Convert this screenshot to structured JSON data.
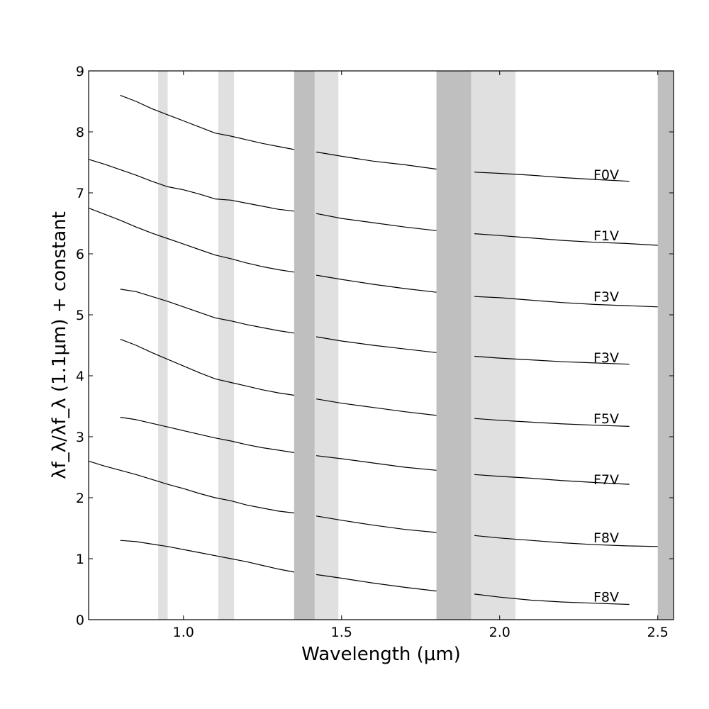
{
  "chart_data": {
    "type": "line",
    "xlabel": "Wavelength (μm)",
    "ylabel": "λf_λ/λf_λ (1.1μm) + constant",
    "xlim": [
      0.7,
      2.55
    ],
    "ylim": [
      0,
      9
    ],
    "x_ticks": [
      1.0,
      1.5,
      2.0,
      2.5
    ],
    "x_tick_labels": [
      "1.0",
      "1.5",
      "2.0",
      "2.5"
    ],
    "y_ticks": [
      0,
      1,
      2,
      3,
      4,
      5,
      6,
      7,
      8,
      9
    ],
    "y_tick_labels": [
      "0",
      "1",
      "2",
      "3",
      "4",
      "5",
      "6",
      "7",
      "8",
      "9"
    ],
    "grid": false,
    "bands": [
      {
        "x0": 0.92,
        "x1": 0.95,
        "color": "#e0e0e0"
      },
      {
        "x0": 1.11,
        "x1": 1.16,
        "color": "#e0e0e0"
      },
      {
        "x0": 1.35,
        "x1": 1.415,
        "color": "#bfbfbf"
      },
      {
        "x0": 1.415,
        "x1": 1.49,
        "color": "#e0e0e0"
      },
      {
        "x0": 1.8,
        "x1": 1.91,
        "color": "#bfbfbf"
      },
      {
        "x0": 1.91,
        "x1": 2.05,
        "color": "#e0e0e0"
      },
      {
        "x0": 2.5,
        "x1": 2.55,
        "color": "#bfbfbf"
      }
    ],
    "series": [
      {
        "name": "F0V",
        "label_y": 7.3,
        "segments": [
          {
            "x": [
              0.8,
              0.85,
              0.9,
              0.95,
              1.0,
              1.05,
              1.1,
              1.15,
              1.2,
              1.25,
              1.3,
              1.35
            ],
            "y": [
              8.6,
              8.5,
              8.38,
              8.28,
              8.18,
              8.08,
              7.98,
              7.93,
              7.87,
              7.81,
              7.76,
              7.71
            ]
          },
          {
            "x": [
              1.42,
              1.5,
              1.6,
              1.7,
              1.8
            ],
            "y": [
              7.67,
              7.6,
              7.52,
              7.46,
              7.39
            ]
          },
          {
            "x": [
              1.92,
              2.0,
              2.1,
              2.2,
              2.3,
              2.41
            ],
            "y": [
              7.34,
              7.32,
              7.29,
              7.25,
              7.22,
              7.19
            ]
          }
        ]
      },
      {
        "name": "F1V",
        "label_y": 6.3,
        "segments": [
          {
            "x": [
              0.7,
              0.75,
              0.8,
              0.85,
              0.9,
              0.95,
              1.0,
              1.05,
              1.1,
              1.15,
              1.2,
              1.25,
              1.3,
              1.35
            ],
            "y": [
              7.55,
              7.47,
              7.38,
              7.29,
              7.19,
              7.1,
              7.05,
              6.98,
              6.9,
              6.88,
              6.83,
              6.78,
              6.73,
              6.7
            ]
          },
          {
            "x": [
              1.42,
              1.5,
              1.6,
              1.7,
              1.8
            ],
            "y": [
              6.66,
              6.58,
              6.51,
              6.44,
              6.38
            ]
          },
          {
            "x": [
              1.92,
              2.0,
              2.1,
              2.2,
              2.3,
              2.4,
              2.5
            ],
            "y": [
              6.33,
              6.3,
              6.26,
              6.22,
              6.19,
              6.17,
              6.14
            ]
          }
        ]
      },
      {
        "name": "F3V",
        "label_y": 5.3,
        "segments": [
          {
            "x": [
              0.7,
              0.75,
              0.8,
              0.85,
              0.9,
              0.95,
              1.0,
              1.05,
              1.1,
              1.15,
              1.2,
              1.25,
              1.3,
              1.35
            ],
            "y": [
              6.75,
              6.65,
              6.55,
              6.44,
              6.34,
              6.25,
              6.16,
              6.07,
              5.98,
              5.92,
              5.85,
              5.79,
              5.74,
              5.7
            ]
          },
          {
            "x": [
              1.42,
              1.5,
              1.6,
              1.7,
              1.8
            ],
            "y": [
              5.65,
              5.58,
              5.5,
              5.43,
              5.37
            ]
          },
          {
            "x": [
              1.92,
              2.0,
              2.1,
              2.2,
              2.3,
              2.4,
              2.5
            ],
            "y": [
              5.3,
              5.28,
              5.24,
              5.2,
              5.17,
              5.15,
              5.13
            ]
          }
        ]
      },
      {
        "name": "F3V",
        "label_y": 4.3,
        "segments": [
          {
            "x": [
              0.8,
              0.85,
              0.9,
              0.95,
              1.0,
              1.05,
              1.1,
              1.15,
              1.2,
              1.25,
              1.3,
              1.35
            ],
            "y": [
              5.42,
              5.38,
              5.3,
              5.22,
              5.13,
              5.04,
              4.95,
              4.9,
              4.84,
              4.79,
              4.74,
              4.7
            ]
          },
          {
            "x": [
              1.42,
              1.5,
              1.6,
              1.7,
              1.8
            ],
            "y": [
              4.64,
              4.57,
              4.5,
              4.44,
              4.38
            ]
          },
          {
            "x": [
              1.92,
              2.0,
              2.1,
              2.2,
              2.3,
              2.41
            ],
            "y": [
              4.32,
              4.29,
              4.26,
              4.23,
              4.21,
              4.19
            ]
          }
        ]
      },
      {
        "name": "F5V",
        "label_y": 3.3,
        "segments": [
          {
            "x": [
              0.8,
              0.85,
              0.9,
              0.95,
              1.0,
              1.05,
              1.1,
              1.15,
              1.2,
              1.25,
              1.3,
              1.35
            ],
            "y": [
              4.6,
              4.5,
              4.38,
              4.27,
              4.16,
              4.05,
              3.95,
              3.89,
              3.83,
              3.77,
              3.72,
              3.68
            ]
          },
          {
            "x": [
              1.42,
              1.5,
              1.6,
              1.7,
              1.8
            ],
            "y": [
              3.62,
              3.55,
              3.48,
              3.41,
              3.35
            ]
          },
          {
            "x": [
              1.92,
              2.0,
              2.1,
              2.2,
              2.3,
              2.41
            ],
            "y": [
              3.3,
              3.27,
              3.24,
              3.21,
              3.19,
              3.17
            ]
          }
        ]
      },
      {
        "name": "F7V",
        "label_y": 2.3,
        "segments": [
          {
            "x": [
              0.8,
              0.85,
              0.9,
              0.95,
              1.0,
              1.05,
              1.1,
              1.15,
              1.2,
              1.25,
              1.3,
              1.35
            ],
            "y": [
              3.32,
              3.28,
              3.22,
              3.16,
              3.1,
              3.04,
              2.98,
              2.93,
              2.87,
              2.82,
              2.78,
              2.74
            ]
          },
          {
            "x": [
              1.42,
              1.5,
              1.6,
              1.7,
              1.8
            ],
            "y": [
              2.69,
              2.64,
              2.57,
              2.5,
              2.45
            ]
          },
          {
            "x": [
              1.92,
              2.0,
              2.1,
              2.2,
              2.3,
              2.41
            ],
            "y": [
              2.38,
              2.35,
              2.32,
              2.28,
              2.25,
              2.22
            ]
          }
        ]
      },
      {
        "name": "F8V",
        "label_y": 1.35,
        "segments": [
          {
            "x": [
              0.7,
              0.75,
              0.8,
              0.85,
              0.9,
              0.95,
              1.0,
              1.05,
              1.1,
              1.15,
              1.2,
              1.25,
              1.3,
              1.35
            ],
            "y": [
              2.6,
              2.52,
              2.45,
              2.38,
              2.3,
              2.22,
              2.15,
              2.07,
              2.0,
              1.95,
              1.88,
              1.83,
              1.78,
              1.75
            ]
          },
          {
            "x": [
              1.42,
              1.5,
              1.6,
              1.7,
              1.8
            ],
            "y": [
              1.7,
              1.63,
              1.55,
              1.48,
              1.43
            ]
          },
          {
            "x": [
              1.92,
              2.0,
              2.1,
              2.2,
              2.3,
              2.4,
              2.5
            ],
            "y": [
              1.38,
              1.34,
              1.3,
              1.26,
              1.23,
              1.21,
              1.2
            ]
          }
        ]
      },
      {
        "name": "F8V",
        "label_y": 0.38,
        "segments": [
          {
            "x": [
              0.8,
              0.85,
              0.9,
              0.95,
              1.0,
              1.05,
              1.1,
              1.15,
              1.2,
              1.25,
              1.3,
              1.35
            ],
            "y": [
              1.3,
              1.28,
              1.24,
              1.2,
              1.15,
              1.1,
              1.05,
              1.0,
              0.95,
              0.89,
              0.83,
              0.78
            ]
          },
          {
            "x": [
              1.42,
              1.5,
              1.6,
              1.7,
              1.8
            ],
            "y": [
              0.74,
              0.68,
              0.6,
              0.53,
              0.47
            ]
          },
          {
            "x": [
              1.92,
              2.0,
              2.1,
              2.2,
              2.3,
              2.41
            ],
            "y": [
              0.42,
              0.37,
              0.32,
              0.29,
              0.27,
              0.25
            ]
          }
        ]
      }
    ]
  }
}
